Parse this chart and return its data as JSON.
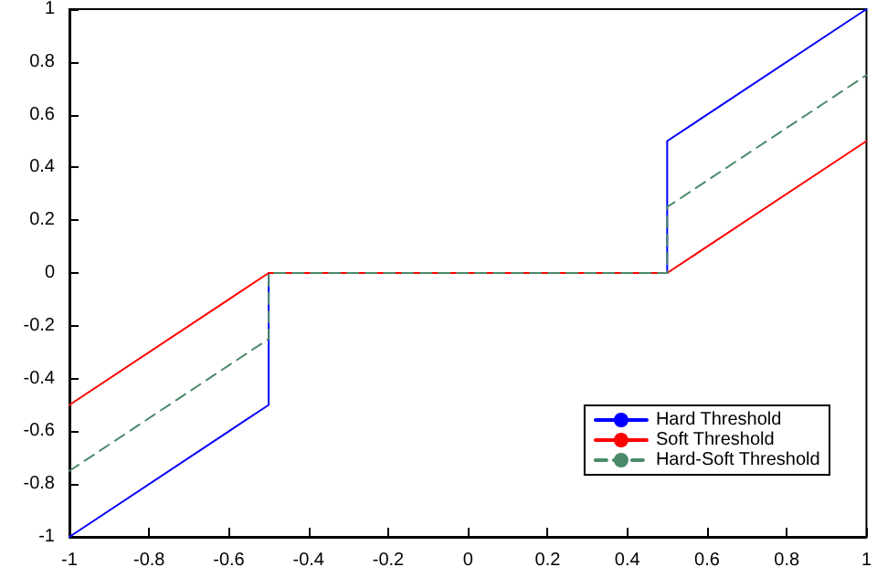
{
  "chart_data": {
    "type": "line",
    "xlim": [
      -1,
      1
    ],
    "xticks": [
      -1,
      -0.8,
      -0.6,
      -0.4,
      -0.2,
      0,
      0.2,
      0.4,
      0.6,
      0.8,
      1
    ],
    "ylim": [
      -1,
      1
    ],
    "yticks": [
      -1,
      -0.8,
      -0.6,
      -0.4,
      -0.2,
      0,
      0.2,
      0.4,
      0.6,
      0.8,
      1
    ],
    "grid": false,
    "legend": "bottom right",
    "marker": "none",
    "series": [
      {
        "name": "Hard Threshold",
        "color": "#0000ff",
        "line_style": "solid",
        "x": [
          -1,
          -0.5,
          -0.5,
          0.5,
          0.5,
          1
        ],
        "values": [
          -1,
          -0.5,
          0,
          0,
          0.5,
          1
        ]
      },
      {
        "name": "Soft Threshold",
        "color": "#ff0000",
        "line_style": "solid",
        "x": [
          -1,
          -0.5,
          0.5,
          1
        ],
        "values": [
          -0.5,
          0,
          0,
          0.5
        ]
      },
      {
        "name": "Hard-Soft Threshold",
        "color": "#4a8a6a",
        "line_style": "dashed",
        "x": [
          -1,
          -0.5,
          -0.5,
          0.5,
          0.5,
          1
        ],
        "values": [
          -0.75,
          -0.25,
          0,
          0,
          0.25,
          0.75
        ]
      }
    ]
  }
}
